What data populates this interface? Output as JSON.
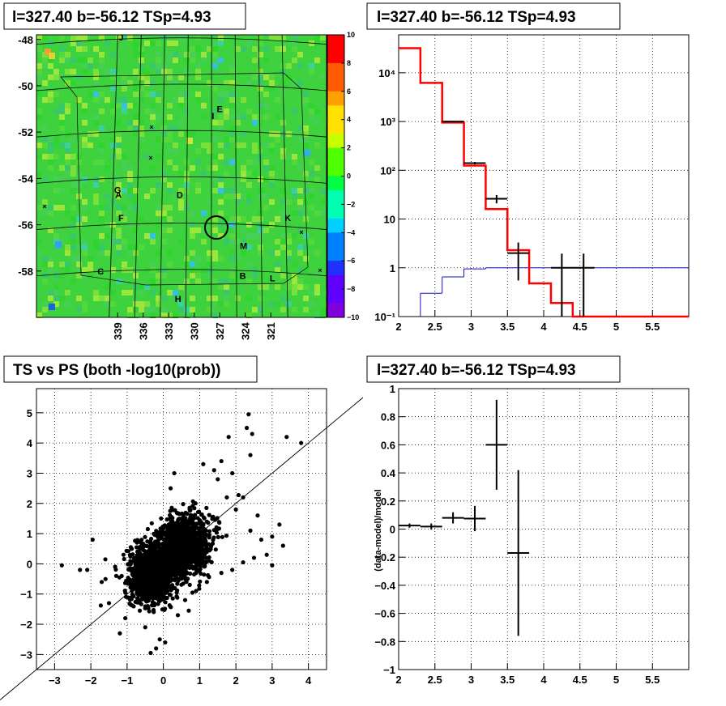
{
  "chart_data": [
    {
      "id": "skymap",
      "type": "heatmap",
      "title": "l=327.40 b=-56.12 TSp=4.93",
      "x_ticks": [
        "339",
        "336",
        "333",
        "330",
        "327",
        "324",
        "321"
      ],
      "y_ticks": [
        "-48",
        "-50",
        "-52",
        "-54",
        "-56",
        "-58"
      ],
      "colorbar_ticks": [
        "10",
        "8",
        "6",
        "4",
        "2",
        "0",
        "−2",
        "−4",
        "−6",
        "−8",
        "−10"
      ],
      "source_labels": [
        {
          "text": "J",
          "l": 338.6,
          "b": -47.9
        },
        {
          "text": "I",
          "l": 327.8,
          "b": -51.3
        },
        {
          "text": "E",
          "l": 327.0,
          "b": -51.0
        },
        {
          "text": "G",
          "l": 339.0,
          "b": -54.5
        },
        {
          "text": "A",
          "l": 338.9,
          "b": -54.7
        },
        {
          "text": "D",
          "l": 331.7,
          "b": -54.7
        },
        {
          "text": "F",
          "l": 338.6,
          "b": -55.7
        },
        {
          "text": "K",
          "l": 319.0,
          "b": -55.7
        },
        {
          "text": "M",
          "l": 324.2,
          "b": -56.9
        },
        {
          "text": "C",
          "l": 341.0,
          "b": -58.0
        },
        {
          "text": "B",
          "l": 324.3,
          "b": -58.2
        },
        {
          "text": "L",
          "l": 320.8,
          "b": -58.3
        },
        {
          "text": "H",
          "l": 331.9,
          "b": -59.2
        }
      ],
      "marker": {
        "l": 327.4,
        "b": -56.12
      }
    },
    {
      "id": "spectrum",
      "type": "line",
      "title": "l=327.40 b=-56.12 TSp=4.93",
      "xlim": [
        2,
        6
      ],
      "ylim": [
        0.1,
        60000
      ],
      "yscale": "log",
      "x_ticks": [
        "2",
        "2.5",
        "3",
        "3.5",
        "4",
        "4.5",
        "5",
        "5.5"
      ],
      "y_ticks": [
        "10⁻¹",
        "1",
        "10",
        "10²",
        "10³",
        "10⁴"
      ],
      "model_red": [
        {
          "x0": 2.0,
          "x1": 2.3,
          "y": 32000
        },
        {
          "x0": 2.3,
          "x1": 2.6,
          "y": 6200
        },
        {
          "x0": 2.6,
          "x1": 2.9,
          "y": 950
        },
        {
          "x0": 2.9,
          "x1": 3.2,
          "y": 125
        },
        {
          "x0": 3.2,
          "x1": 3.5,
          "y": 16
        },
        {
          "x0": 3.5,
          "x1": 3.8,
          "y": 2.3
        },
        {
          "x0": 3.8,
          "x1": 4.1,
          "y": 0.48
        },
        {
          "x0": 4.1,
          "x1": 4.4,
          "y": 0.19
        },
        {
          "x0": 4.4,
          "x1": 4.7,
          "y": 0.1
        },
        {
          "x0": 4.7,
          "x1": 6.0,
          "y": 0.1
        }
      ],
      "model_blue": [
        {
          "x0": 2.3,
          "x1": 2.6,
          "y": 0.3
        },
        {
          "x0": 2.6,
          "x1": 2.9,
          "y": 0.65
        },
        {
          "x0": 2.9,
          "x1": 3.2,
          "y": 0.95
        },
        {
          "x0": 3.2,
          "x1": 6.0,
          "y": 1.0
        }
      ],
      "data_points": [
        {
          "x": 2.75,
          "y": 1000,
          "xerr": 0.15,
          "ylo": 970,
          "yhi": 1030
        },
        {
          "x": 3.05,
          "y": 140,
          "xerr": 0.15,
          "ylo": 132,
          "yhi": 148
        },
        {
          "x": 3.35,
          "y": 26,
          "xerr": 0.15,
          "ylo": 21,
          "yhi": 31
        },
        {
          "x": 3.65,
          "y": 2.0,
          "xerr": 0.15,
          "ylo": 0.55,
          "yhi": 3.3
        },
        {
          "x": 4.25,
          "y": 1.0,
          "xerr": 0.15,
          "ylo": 0.1,
          "yhi": 1.95
        },
        {
          "x": 4.55,
          "y": 1.0,
          "xerr": 0.15,
          "ylo": 0.1,
          "yhi": 1.95
        }
      ]
    },
    {
      "id": "scatter",
      "type": "scatter",
      "title": "TS vs PS (both -log10(prob))",
      "xlim": [
        -3.5,
        4.5
      ],
      "ylim": [
        -3.5,
        5.8
      ],
      "x_ticks": [
        "−3",
        "−2",
        "−1",
        "0",
        "1",
        "2",
        "3",
        "4"
      ],
      "y_ticks": [
        "−3",
        "−2",
        "−1",
        "0",
        "1",
        "2",
        "3",
        "4",
        "5"
      ],
      "diagonal": {
        "slope": 1,
        "intercept": 0
      },
      "outliers": [
        [
          -2.8,
          -0.05
        ],
        [
          -2.3,
          -0.2
        ],
        [
          -2.1,
          -0.2
        ],
        [
          -1.95,
          0.8
        ],
        [
          -1.5,
          -1.3
        ],
        [
          -1.2,
          -2.3
        ],
        [
          -1.7,
          -0.6
        ],
        [
          -1.6,
          0.15
        ],
        [
          -1.3,
          -0.4
        ],
        [
          -1.05,
          -1.8
        ],
        [
          -0.9,
          -1.35
        ],
        [
          -0.65,
          -1.55
        ],
        [
          -0.5,
          -2.1
        ],
        [
          -0.35,
          -2.95
        ],
        [
          -0.2,
          -2.8
        ],
        [
          -0.1,
          -2.5
        ],
        [
          0.05,
          -2.6
        ],
        [
          0.6,
          -1.2
        ],
        [
          0.9,
          -0.9
        ],
        [
          1.2,
          -0.6
        ],
        [
          1.6,
          -0.3
        ],
        [
          1.9,
          -0.2
        ],
        [
          2.2,
          0.05
        ],
        [
          2.5,
          0.2
        ],
        [
          2.85,
          0.3
        ],
        [
          3.0,
          0.9
        ],
        [
          3.2,
          1.3
        ],
        [
          3.3,
          0.6
        ],
        [
          3.0,
          -0.05
        ],
        [
          2.7,
          0.8
        ],
        [
          2.4,
          1.1
        ],
        [
          2.0,
          1.8
        ],
        [
          1.75,
          2.2
        ],
        [
          1.9,
          3.0
        ],
        [
          1.5,
          2.8
        ],
        [
          1.6,
          3.4
        ],
        [
          1.8,
          4.2
        ],
        [
          2.3,
          4.5
        ],
        [
          2.45,
          4.3
        ],
        [
          3.4,
          4.2
        ],
        [
          3.8,
          4.0
        ],
        [
          2.4,
          3.6
        ],
        [
          1.4,
          3.1
        ],
        [
          1.1,
          3.3
        ],
        [
          2.2,
          2.2
        ],
        [
          2.6,
          1.6
        ],
        [
          0.3,
          3.0
        ],
        [
          0.2,
          2.5
        ],
        [
          2.35,
          4.95
        ],
        [
          0.9,
          -0.3
        ],
        [
          -0.9,
          0.55
        ],
        [
          -1.1,
          0.3
        ],
        [
          0.4,
          -1.7
        ],
        [
          0.7,
          -1.55
        ]
      ]
    },
    {
      "id": "residual",
      "type": "scatter",
      "title": "l=327.40 b=-56.12 TSp=4.93",
      "ylabel": "(data-model)/model",
      "xlim": [
        2,
        6
      ],
      "ylim": [
        -1,
        1
      ],
      "x_ticks": [
        "2",
        "2.5",
        "3",
        "3.5",
        "4",
        "4.5",
        "5",
        "5.5"
      ],
      "y_ticks": [
        "−1",
        "−0.8",
        "−0.6",
        "−0.4",
        "−0.2",
        "0",
        "0.2",
        "0.4",
        "0.6",
        "0.8",
        "1"
      ],
      "points": [
        {
          "x": 2.15,
          "y": 0.025,
          "xerr": 0.15,
          "yerr": 0.015
        },
        {
          "x": 2.45,
          "y": 0.018,
          "xerr": 0.15,
          "yerr": 0.022
        },
        {
          "x": 2.75,
          "y": 0.08,
          "xerr": 0.15,
          "yerr": 0.04
        },
        {
          "x": 3.05,
          "y": 0.075,
          "xerr": 0.15,
          "yerr": 0.09
        },
        {
          "x": 3.35,
          "y": 0.6,
          "xerr": 0.15,
          "yerr": 0.32
        },
        {
          "x": 3.65,
          "y": -0.17,
          "xerr": 0.15,
          "yerr": 0.59
        }
      ]
    }
  ]
}
